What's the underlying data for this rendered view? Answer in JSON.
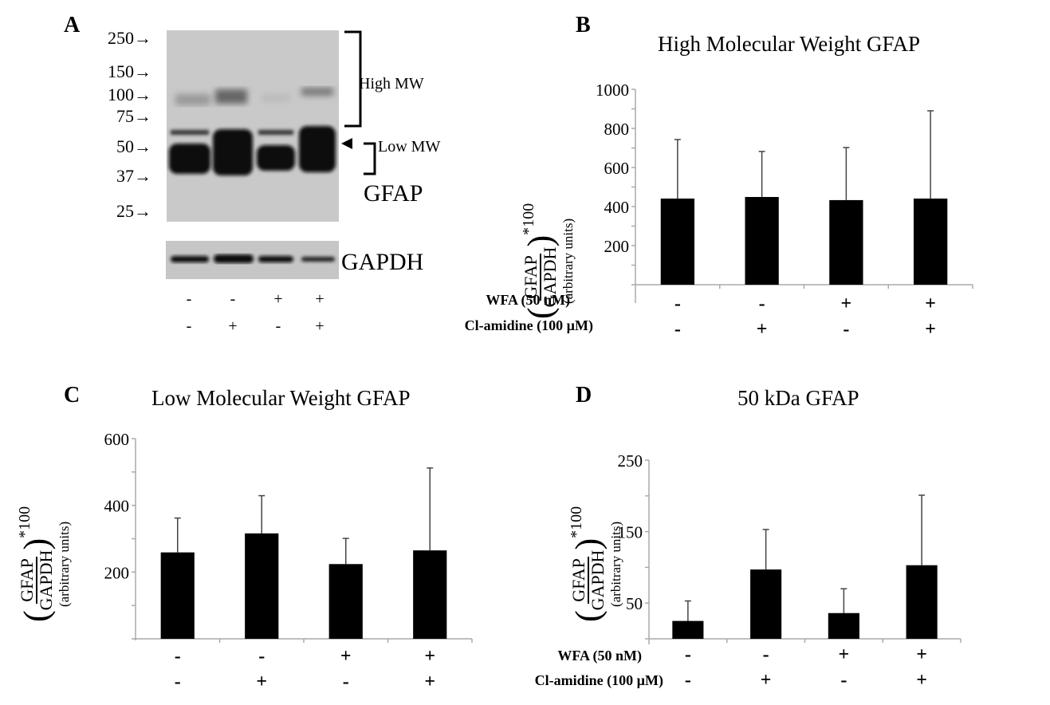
{
  "panels": {
    "A": {
      "letter": "A",
      "mw_markers": [
        "250",
        "150",
        "100",
        "75",
        "50",
        "37",
        "25"
      ],
      "high_mw_label": "High MW",
      "low_mw_label": "Low MW",
      "gfap_label": "GFAP",
      "gapdh_label": "GAPDH",
      "wfa_signs": [
        "-",
        "-",
        "+",
        "+"
      ],
      "cl_signs": [
        "-",
        "+",
        "-",
        "+"
      ]
    },
    "B": {
      "letter": "B"
    },
    "C": {
      "letter": "C"
    },
    "D": {
      "letter": "D"
    }
  },
  "labels": {
    "wfa": "WFA (50 nM)",
    "cl": "Cl-amidine (100 µM)",
    "frac_num": "GFAP",
    "frac_den": "GAPDH",
    "mult": "*100",
    "units": "(arbitrary units)"
  },
  "chart_data": [
    {
      "type": "bar",
      "panel": "B",
      "title": "High Molecular Weight GFAP",
      "categories": [
        "WFA- / Cl-amidine-",
        "WFA- / Cl-amidine+",
        "WFA+ / Cl-amidine-",
        "WFA+ / Cl-amidine+"
      ],
      "wfa": [
        "-",
        "-",
        "+",
        "+"
      ],
      "cl_amidine": [
        "-",
        "+",
        "-",
        "+"
      ],
      "values": [
        441,
        449,
        433,
        441
      ],
      "error_upper": [
        743,
        682,
        702,
        890
      ],
      "ylabel": "(GFAP/GAPDH)*100 (arbitrary units)",
      "ylim": [
        0,
        1000
      ],
      "yticks": [
        200,
        400,
        600,
        800,
        1000
      ],
      "bar_color": "#000000"
    },
    {
      "type": "bar",
      "panel": "C",
      "title": "Low Molecular Weight GFAP",
      "categories": [
        "WFA- / Cl-amidine-",
        "WFA- / Cl-amidine+",
        "WFA+ / Cl-amidine-",
        "WFA+ / Cl-amidine+"
      ],
      "wfa": [
        "-",
        "-",
        "+",
        "+"
      ],
      "cl_amidine": [
        "-",
        "+",
        "-",
        "+"
      ],
      "values": [
        259,
        316,
        224,
        265
      ],
      "error_upper": [
        362,
        429,
        301,
        512
      ],
      "ylabel": "(GFAP/GAPDH)*100 (arbitrary units)",
      "ylim": [
        0,
        600
      ],
      "yticks": [
        200,
        400,
        600
      ],
      "bar_color": "#000000"
    },
    {
      "type": "bar",
      "panel": "D",
      "title": "50 kDa GFAP",
      "categories": [
        "WFA- / Cl-amidine-",
        "WFA- / Cl-amidine+",
        "WFA+ / Cl-amidine-",
        "WFA+ / Cl-amidine+"
      ],
      "wfa": [
        "-",
        "-",
        "+",
        "+"
      ],
      "cl_amidine": [
        "-",
        "+",
        "-",
        "+"
      ],
      "values": [
        25,
        97,
        36,
        103
      ],
      "error_upper": [
        53,
        153,
        70,
        201
      ],
      "ylabel": "(GFAP/GAPDH)*100 (arbitrary units)",
      "ylim": [
        0,
        250
      ],
      "yticks": [
        50,
        150,
        250
      ],
      "bar_color": "#000000"
    }
  ]
}
